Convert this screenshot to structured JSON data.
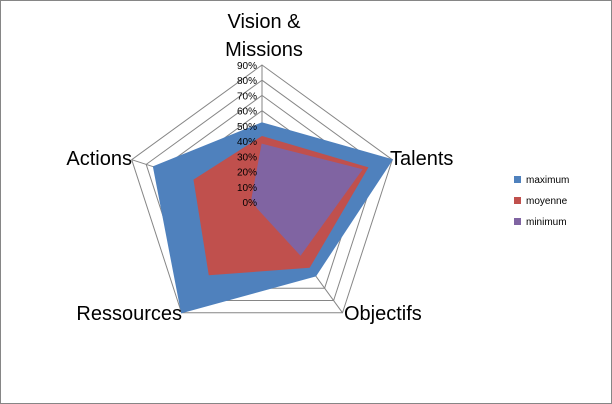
{
  "chart_data": {
    "type": "radar",
    "categories": [
      "Vision & Missions",
      "Talents",
      "Objectifs",
      "Ressources",
      "Actions"
    ],
    "category_lines": [
      [
        "Vision &",
        "Missions"
      ],
      [
        "Talents"
      ],
      [
        "Objectifs"
      ],
      [
        "Ressources"
      ],
      [
        "Actions"
      ]
    ],
    "rmax": 90,
    "ticks": [
      0,
      10,
      20,
      30,
      40,
      50,
      60,
      70,
      80,
      90
    ],
    "tick_labels": [
      "0%",
      "10%",
      "20%",
      "30%",
      "40%",
      "50%",
      "60%",
      "70%",
      "80%",
      "90%"
    ],
    "legend_position": "right",
    "series": [
      {
        "name": "maximum",
        "color": "#4F81BD",
        "values": [
          52,
          90,
          60,
          90,
          75
        ]
      },
      {
        "name": "moyenne",
        "color": "#C0504D",
        "values": [
          43,
          73,
          53,
          59,
          47
        ]
      },
      {
        "name": "minimum",
        "color": "#8064A2",
        "values": [
          38,
          69,
          43,
          5,
          7
        ]
      }
    ]
  }
}
